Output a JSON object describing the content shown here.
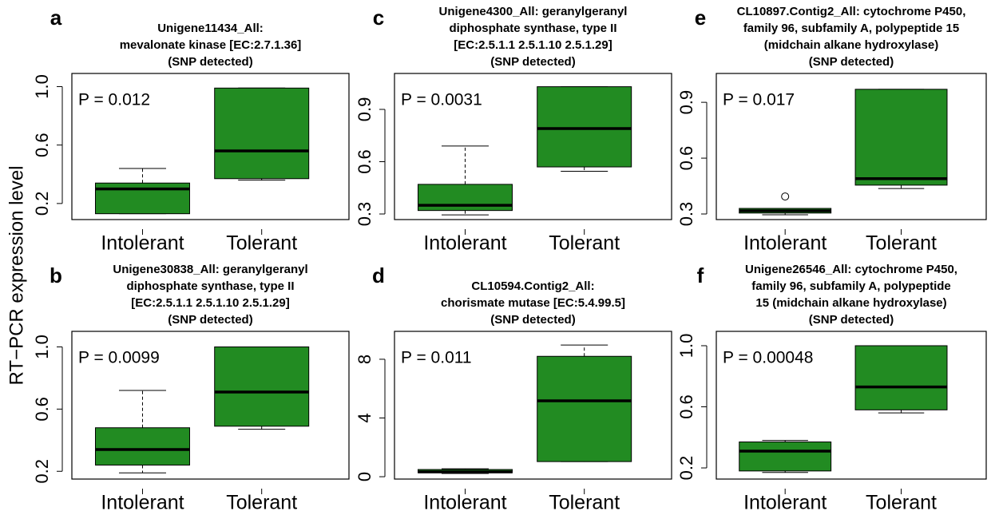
{
  "ylabel": "RT−PCR expression level",
  "chart_data": [
    {
      "type": "box",
      "panel": "a",
      "title": [
        "Unigene11434_All:",
        "mevalonate kinase [EC:2.7.1.36]",
        "(SNP detected)"
      ],
      "annotation": "P = 0.012",
      "categories": [
        "Intolerant",
        "Tolerant"
      ],
      "color": "#228b22",
      "boxes": [
        {
          "min": 0.13,
          "q1": 0.13,
          "median": 0.3,
          "q3": 0.34,
          "max": 0.44
        },
        {
          "min": 0.36,
          "q1": 0.37,
          "median": 0.56,
          "q3": 0.99,
          "max": 0.99
        }
      ],
      "ylim": [
        0.09,
        1.09
      ],
      "yticks": [
        0.2,
        0.6,
        {
          "value": 1,
          "label": "1.0"
        }
      ]
    },
    {
      "type": "box",
      "panel": "b",
      "title": [
        "Unigene30838_All: geranylgeranyl",
        "diphosphate synthase, type II",
        "[EC:2.5.1.1 2.5.1.10 2.5.1.29]",
        "(SNP detected)"
      ],
      "annotation": "P = 0.0099",
      "categories": [
        "Intolerant",
        "Tolerant"
      ],
      "color": "#228b22",
      "boxes": [
        {
          "min": 0.19,
          "q1": 0.24,
          "median": 0.34,
          "q3": 0.48,
          "max": 0.72
        },
        {
          "min": 0.47,
          "q1": 0.49,
          "median": 0.71,
          "q3": 1.0,
          "max": 1.0
        }
      ],
      "ylim": [
        0.15,
        1.1
      ],
      "yticks": [
        0.2,
        0.6,
        {
          "value": 1,
          "label": "1.0"
        }
      ]
    },
    {
      "type": "box",
      "panel": "c",
      "title": [
        "Unigene4300_All: geranylgeranyl",
        "diphosphate synthase, type II",
        "[EC:2.5.1.1 2.5.1.10 2.5.1.29]",
        "(SNP detected)"
      ],
      "annotation": "P = 0.0031",
      "categories": [
        "Intolerant",
        "Tolerant"
      ],
      "color": "#228b22",
      "boxes": [
        {
          "min": 0.295,
          "q1": 0.32,
          "median": 0.35,
          "q3": 0.47,
          "max": 0.69
        },
        {
          "min": 0.545,
          "q1": 0.57,
          "median": 0.79,
          "q3": 1.03,
          "max": 1.03
        }
      ],
      "ylim": [
        0.268,
        1.106
      ],
      "yticks": [
        0.3,
        0.6,
        0.9
      ]
    },
    {
      "type": "box",
      "panel": "d",
      "title": [
        "CL10594.Contig2_All:",
        "chorismate mutase [EC:5.4.99.5]",
        "(SNP detected)"
      ],
      "annotation": "P = 0.011",
      "categories": [
        "Intolerant",
        "Tolerant"
      ],
      "color": "#228b22",
      "boxes": [
        {
          "min": 0.22,
          "q1": 0.27,
          "median": 0.33,
          "q3": 0.49,
          "max": 0.54
        },
        {
          "min": 1.03,
          "q1": 1.03,
          "median": 5.17,
          "q3": 8.2,
          "max": 8.97
        }
      ],
      "ylim": [
        -0.16,
        9.9
      ],
      "yticks": [
        0,
        4,
        8
      ]
    },
    {
      "type": "box",
      "panel": "e",
      "title": [
        "CL10897.Contig2_All: cytochrome P450,",
        "family 96, subfamily A, polypeptide 15",
        "(midchain alkane hydroxylase)",
        "(SNP detected)"
      ],
      "annotation": "P = 0.017",
      "categories": [
        "Intolerant",
        "Tolerant"
      ],
      "color": "#228b22",
      "boxes": [
        {
          "min": 0.296,
          "q1": 0.305,
          "median": 0.317,
          "q3": 0.33,
          "max": 0.33,
          "outliers": [
            0.394
          ]
        },
        {
          "min": 0.437,
          "q1": 0.455,
          "median": 0.49,
          "q3": 0.97,
          "max": 0.97
        }
      ],
      "ylim": [
        0.27,
        1.055
      ],
      "yticks": [
        0.3,
        0.6,
        0.9
      ]
    },
    {
      "type": "box",
      "panel": "f",
      "title": [
        "Unigene26546_All: cytochrome P450,",
        "family 96, subfamily A, polypeptide",
        "15 (midchain alkane hydroxylase)",
        "(SNP detected)"
      ],
      "annotation": "P = 0.00048",
      "categories": [
        "Intolerant",
        "Tolerant"
      ],
      "color": "#228b22",
      "boxes": [
        {
          "min": 0.17,
          "q1": 0.18,
          "median": 0.31,
          "q3": 0.37,
          "max": 0.38
        },
        {
          "min": 0.56,
          "q1": 0.58,
          "median": 0.73,
          "q3": 1.0,
          "max": 1.0
        }
      ],
      "ylim": [
        0.127,
        1.094
      ],
      "yticks": [
        0.2,
        0.6,
        {
          "value": 1,
          "label": "1.0"
        }
      ]
    }
  ]
}
